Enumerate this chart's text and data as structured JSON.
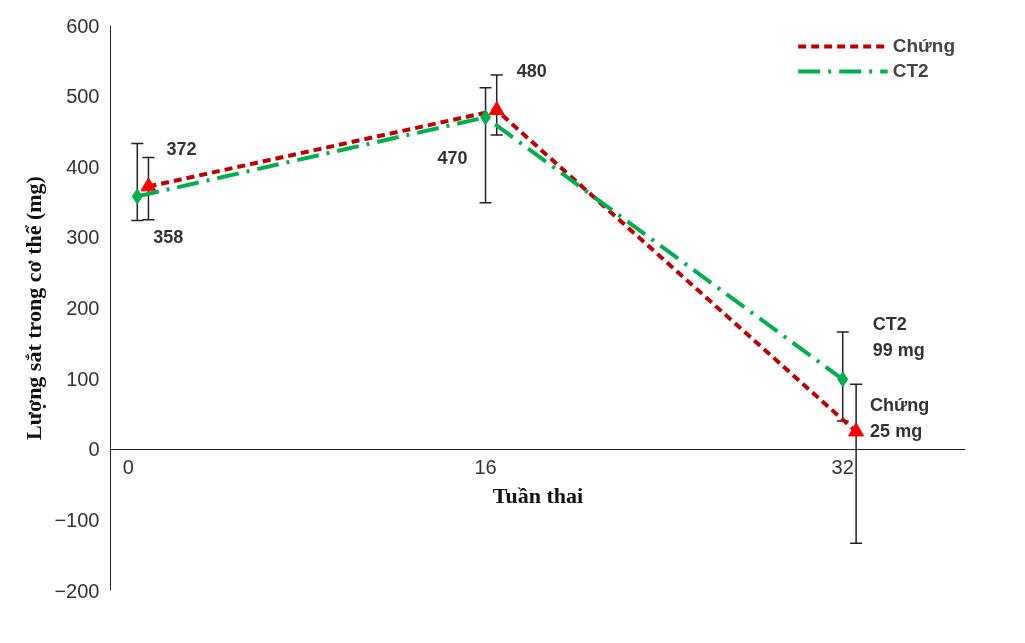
{
  "chart_data": {
    "type": "line",
    "xlabel": "Tuần thai",
    "ylabel": "Lượng sắt trong cơ thể (mg)",
    "xlim": [
      -0.8,
      37.5
    ],
    "xticks": [
      0,
      16,
      32
    ],
    "ylim": [
      -200,
      600
    ],
    "yticks": [
      -200,
      -100,
      0,
      100,
      200,
      300,
      400,
      500,
      600
    ],
    "grid": false,
    "legend": "top right",
    "series": [
      {
        "name": "Chứng",
        "color": "#c00000",
        "x": [
          0.9,
          16.5,
          32.6
        ],
        "values": [
          372,
          480,
          25
        ],
        "errors": [
          [
            325,
            413
          ],
          [
            445,
            530
          ],
          [
            -133,
            92
          ]
        ],
        "marker": "triangle",
        "line_style": "dashed"
      },
      {
        "name": "CT2",
        "color": "#00b050",
        "x": [
          0.4,
          16,
          32
        ],
        "values": [
          358,
          470,
          99
        ],
        "errors": [
          [
            324,
            433
          ],
          [
            349,
            512
          ],
          [
            40,
            166
          ]
        ],
        "marker": "diamond",
        "line_style": "dashdot"
      }
    ],
    "annotations": [
      {
        "text": "372",
        "x": 0.9,
        "y": 372
      },
      {
        "text": "358",
        "x": 0.4,
        "y": 358
      },
      {
        "text": "480",
        "x": 16.5,
        "y": 480
      },
      {
        "text": "470",
        "x": 16,
        "y": 470
      },
      {
        "text": "CT2\n99 mg",
        "x": 32,
        "y": 99
      },
      {
        "text": "Chứng\n25 mg",
        "x": 32.6,
        "y": 25
      }
    ]
  }
}
